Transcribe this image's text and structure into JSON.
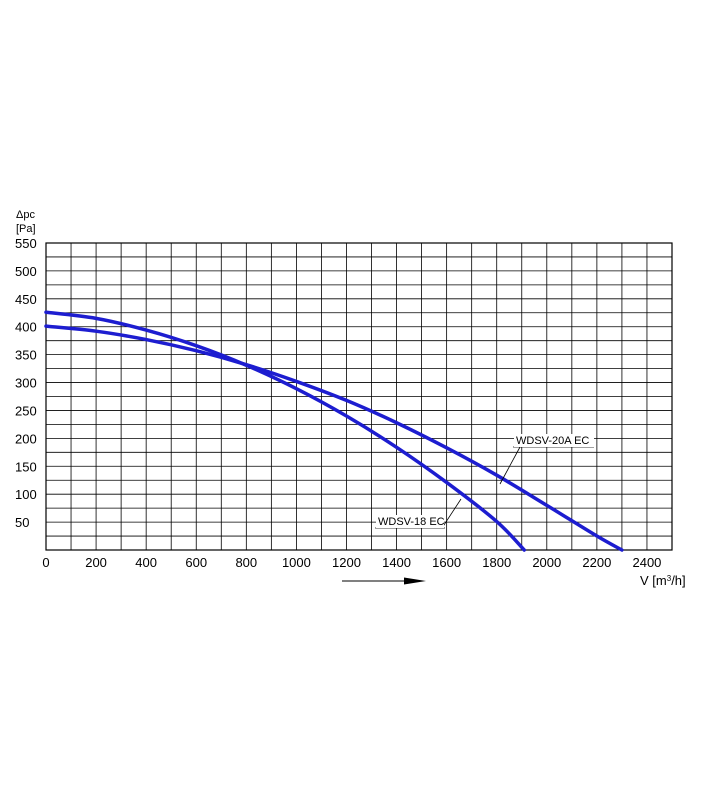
{
  "chart_data": {
    "type": "line",
    "ylabel_line1": "Δpc",
    "ylabel_line2": "[Pa]",
    "xlabel": "V [m³/h]",
    "xlabel_main": "V [m",
    "xlabel_sup": "3",
    "xlabel_tail": "/h]",
    "xlim": [
      0,
      2500
    ],
    "ylim": [
      0,
      550
    ],
    "x_ticks": [
      0,
      200,
      400,
      600,
      800,
      1000,
      1200,
      1400,
      1600,
      1800,
      2000,
      2200,
      2400
    ],
    "y_ticks": [
      50,
      100,
      150,
      200,
      250,
      300,
      350,
      400,
      450,
      500,
      550
    ],
    "grid": true,
    "series": [
      {
        "name": "WDSV-20A EC",
        "x": [
          0,
          200,
          400,
          600,
          800,
          1000,
          1200,
          1400,
          1600,
          1800,
          2000,
          2200,
          2300
        ],
        "y": [
          401,
          392,
          377,
          357,
          332,
          302,
          268,
          228,
          183,
          134,
          80,
          25,
          0
        ]
      },
      {
        "name": "WDSV-18 EC",
        "x": [
          0,
          200,
          400,
          600,
          800,
          1000,
          1200,
          1400,
          1600,
          1800,
          1910
        ],
        "y": [
          426,
          415,
          394,
          366,
          331,
          289,
          240,
          184,
          121,
          51,
          0
        ]
      }
    ],
    "colors": {
      "series": "#1d1dd0",
      "grid": "#000000"
    }
  }
}
